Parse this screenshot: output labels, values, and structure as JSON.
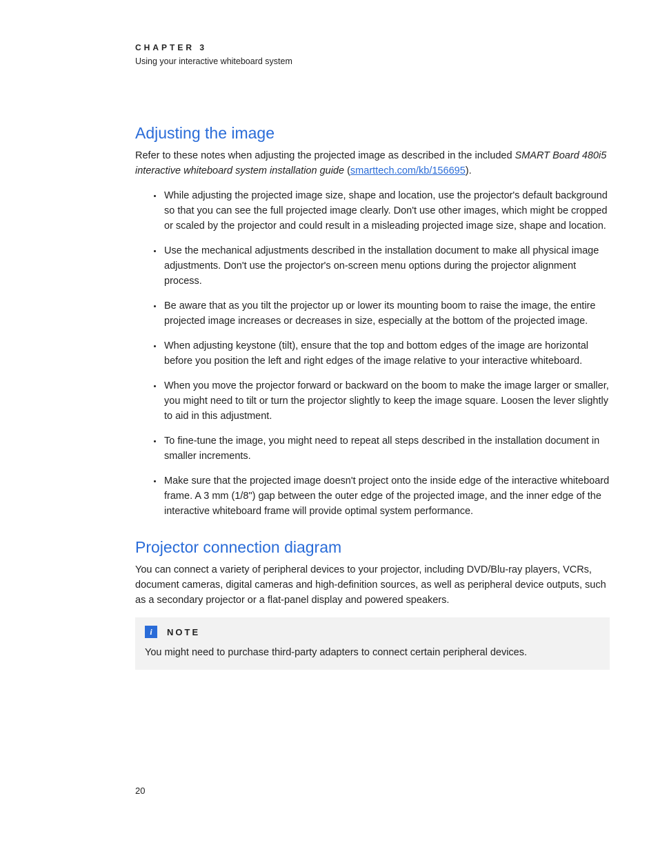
{
  "header": {
    "chapter_label": "CHAPTER 3",
    "chapter_subtitle": "Using your interactive whiteboard system"
  },
  "section1": {
    "heading": "Adjusting the image",
    "intro_prefix": "Refer to these notes when adjusting the projected image as described in the included ",
    "intro_italic": "SMART Board 480i5 interactive whiteboard system installation guide",
    "intro_open_paren": " (",
    "intro_link_text": "smarttech.com/kb/156695",
    "intro_link_href": "http://smarttech.com/kb/156695",
    "intro_close": ").",
    "bullets": [
      "While adjusting the projected image size, shape and location, use the projector's default background so that you can see the full projected image clearly. Don't use other images, which might be cropped or scaled by the projector and could result in a misleading projected image size, shape and location.",
      "Use the mechanical adjustments described in the installation document to make all physical image adjustments. Don't use the projector's on-screen menu options during the projector alignment process.",
      "Be aware that as you tilt the projector up or lower its mounting boom to raise the image, the entire projected image increases or decreases in size, especially at the bottom of the projected image.",
      "When adjusting keystone (tilt), ensure that the top and bottom edges of the image are horizontal before you position the left and right edges of the image relative to your interactive whiteboard.",
      "When you move the projector forward or backward on the boom to make the image larger or smaller, you might need to tilt or turn the projector slightly to keep the image square. Loosen the lever slightly to aid in this adjustment.",
      "To fine-tune the image, you might need to repeat all steps described in the installation document in smaller increments.",
      "Make sure that the projected image doesn't project onto the inside edge of the interactive whiteboard frame. A 3 mm (1/8\") gap between the outer edge of the projected image, and the inner edge of the interactive whiteboard frame will provide optimal system performance."
    ]
  },
  "section2": {
    "heading": "Projector connection diagram",
    "intro": "You can connect a variety of peripheral devices to your projector, including DVD/Blu-ray players, VCRs, document cameras, digital cameras and high-definition sources, as well as peripheral device outputs, such as a secondary projector or a flat-panel display and powered speakers."
  },
  "note": {
    "icon_glyph": "i",
    "label": "NOTE",
    "body": "You might need to purchase third-party adapters to connect certain peripheral devices."
  },
  "page_number": "20",
  "colors": {
    "heading_blue": "#2a6cd8",
    "note_bg": "#f2f2f2",
    "text": "#222222",
    "page_bg": "#ffffff"
  }
}
